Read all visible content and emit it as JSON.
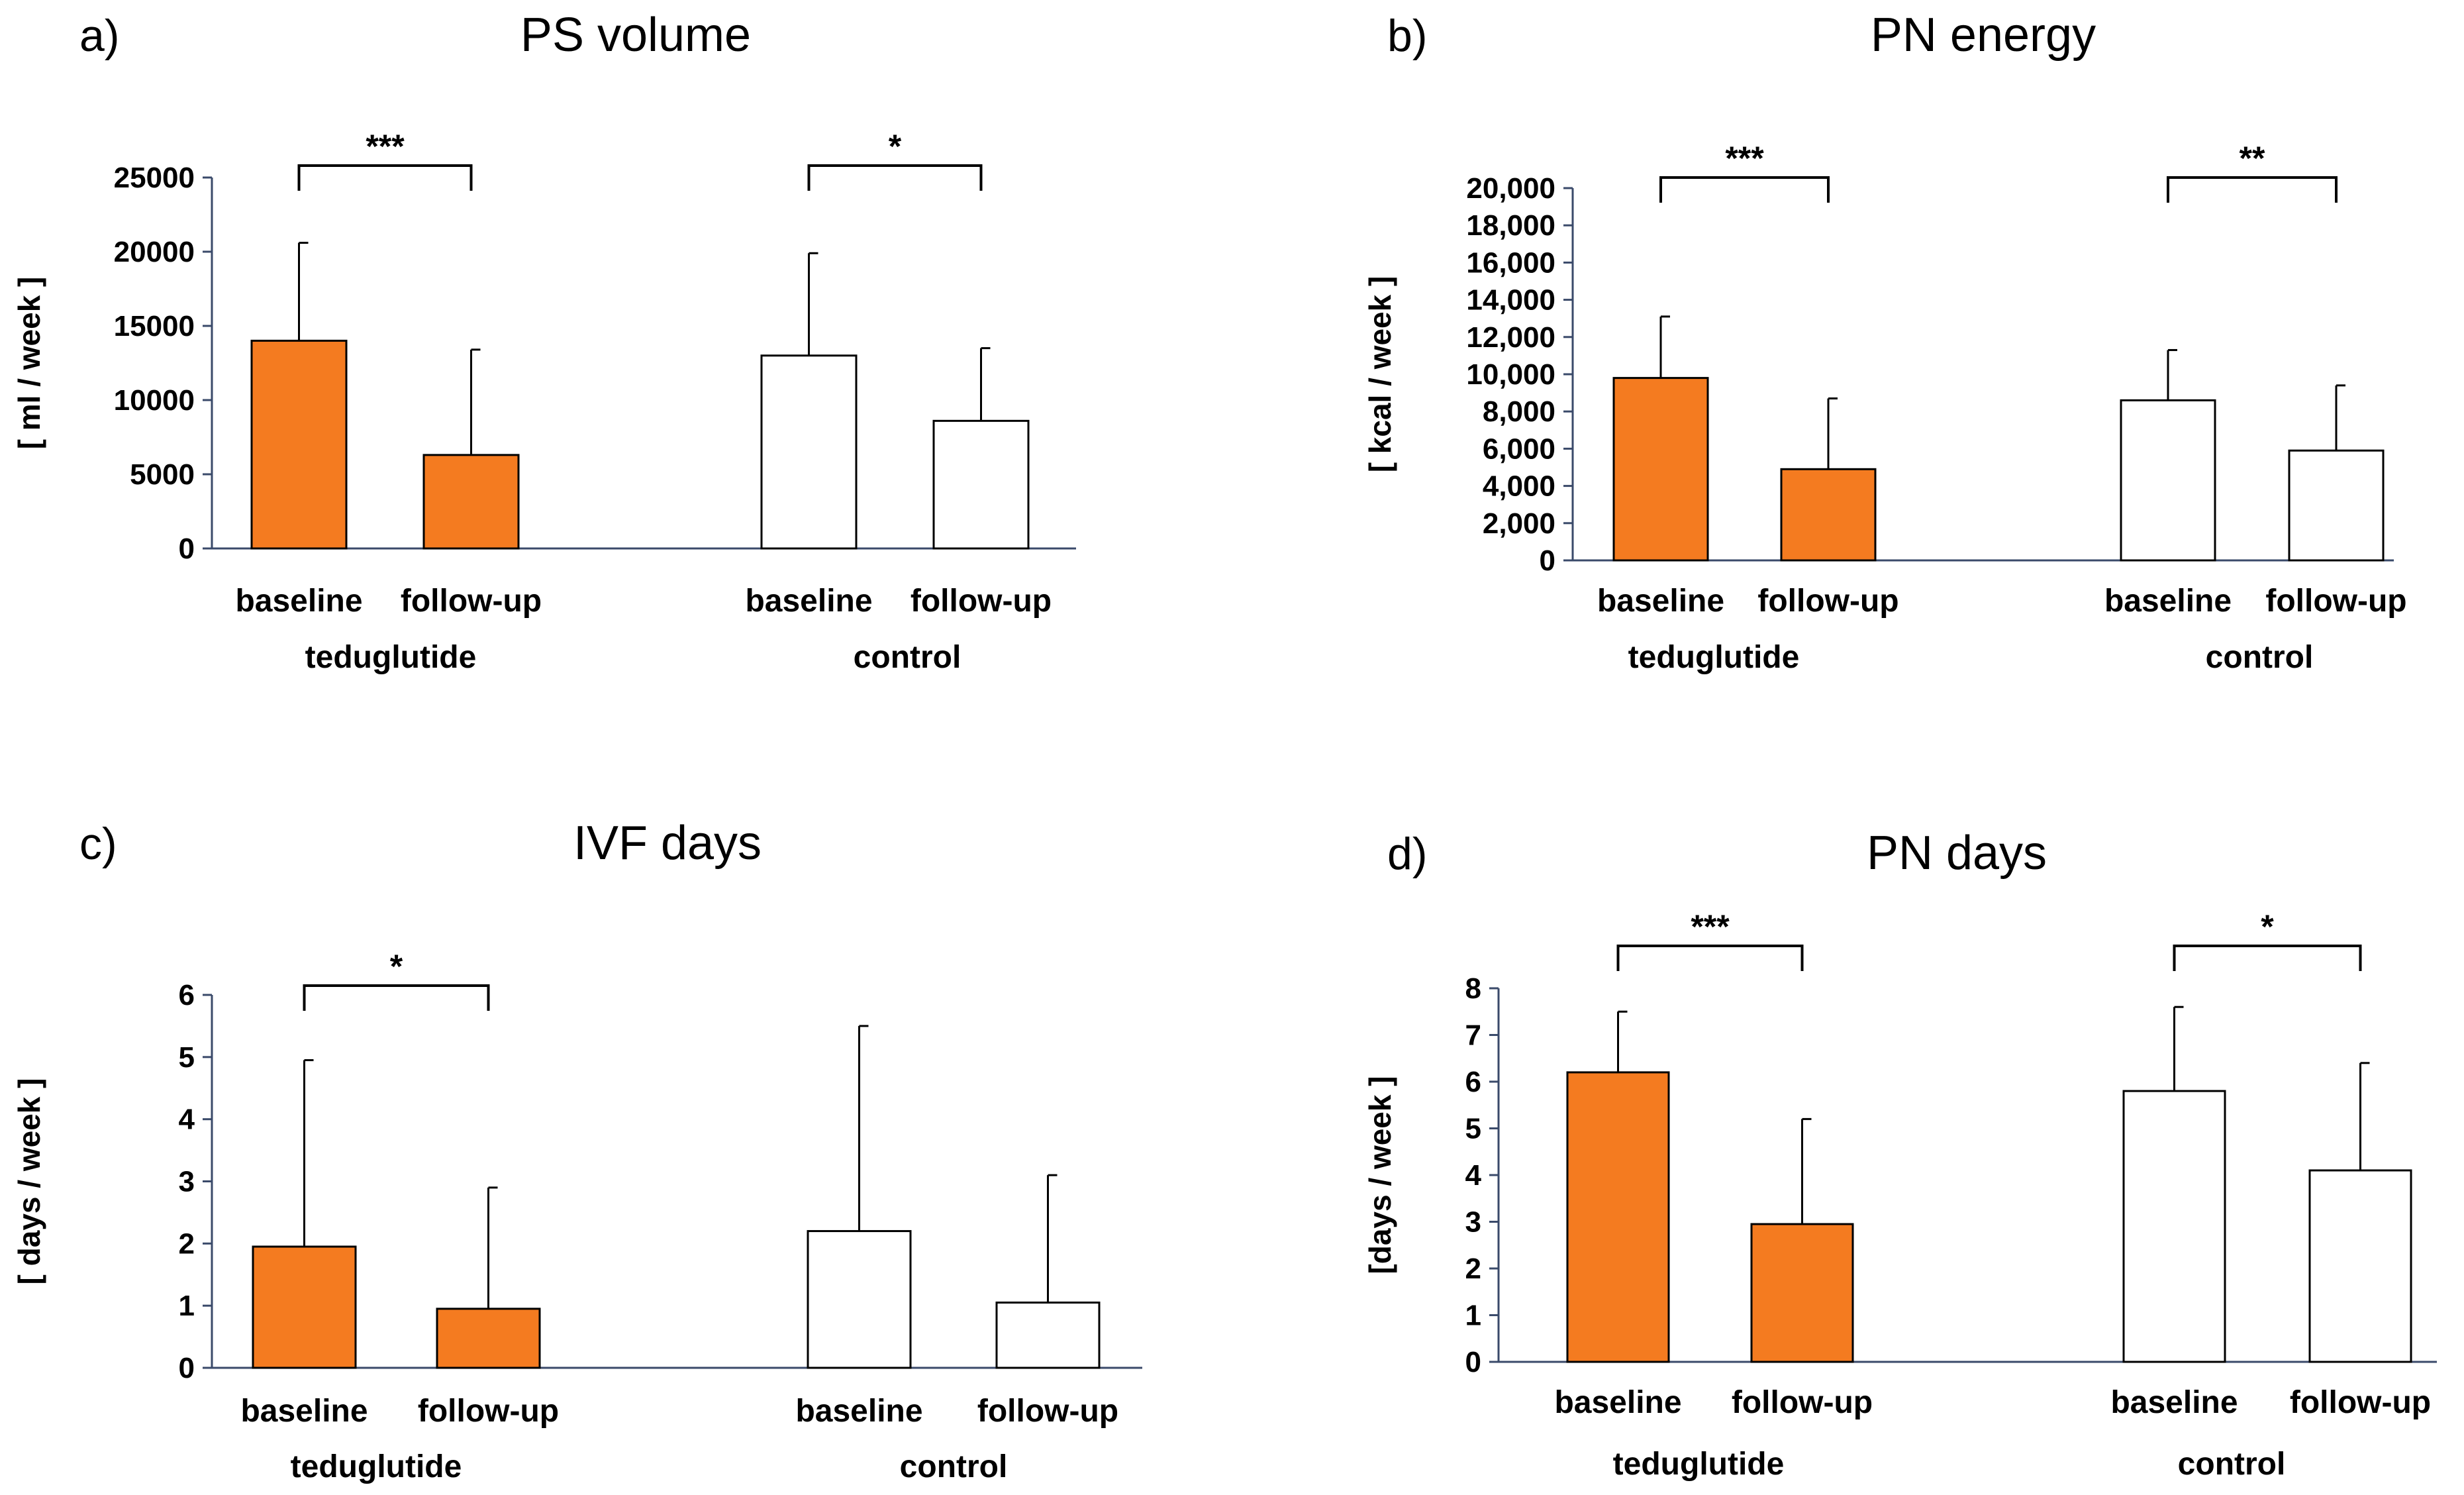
{
  "chart_data": [
    {
      "type": "bar",
      "panel_label": "a)",
      "title": "PS volume",
      "ylabel": "[ ml / week ]",
      "ylim": [
        0,
        25000
      ],
      "yticks": [
        "0",
        "5000",
        "10000",
        "15000",
        "20000",
        "25000"
      ],
      "categories": [
        "baseline",
        "follow-up",
        "baseline",
        "follow-up"
      ],
      "groups": [
        {
          "name": "teduglutide",
          "color": "#f47b20",
          "values": [
            14000,
            6300
          ],
          "error": [
            6600,
            7100
          ],
          "significance": "***"
        },
        {
          "name": "control",
          "color": "#ffffff",
          "values": [
            13000,
            8600
          ],
          "error": [
            6900,
            4900
          ],
          "significance": "*"
        }
      ]
    },
    {
      "type": "bar",
      "panel_label": "b)",
      "title": "PN energy",
      "ylabel": "[ kcal / week ]",
      "ylim": [
        0,
        20000
      ],
      "yticks": [
        "0",
        "2,000",
        "4,000",
        "6,000",
        "8,000",
        "10,000",
        "12,000",
        "14,000",
        "16,000",
        "18,000",
        "20,000"
      ],
      "categories": [
        "baseline",
        "follow-up",
        "baseline",
        "follow-up"
      ],
      "groups": [
        {
          "name": "teduglutide",
          "color": "#f47b20",
          "values": [
            9800,
            4900
          ],
          "error": [
            3300,
            3800
          ],
          "significance": "***"
        },
        {
          "name": "control",
          "color": "#ffffff",
          "values": [
            8600,
            5900
          ],
          "error": [
            2700,
            3500
          ],
          "significance": "**"
        }
      ]
    },
    {
      "type": "bar",
      "panel_label": "c)",
      "title": "IVF days",
      "ylabel": "[ days / week ]",
      "ylim": [
        0,
        6
      ],
      "yticks": [
        "0",
        "1",
        "2",
        "3",
        "4",
        "5",
        "6"
      ],
      "categories": [
        "baseline",
        "follow-up",
        "baseline",
        "follow-up"
      ],
      "groups": [
        {
          "name": "teduglutide",
          "color": "#f47b20",
          "values": [
            1.95,
            0.95
          ],
          "error": [
            3.0,
            1.95
          ],
          "significance": "*"
        },
        {
          "name": "control",
          "color": "#ffffff",
          "values": [
            2.2,
            1.05
          ],
          "error": [
            3.3,
            2.05
          ],
          "significance": ""
        }
      ]
    },
    {
      "type": "bar",
      "panel_label": "d)",
      "title": "PN days",
      "ylabel": "[days / week ]",
      "ylim": [
        0,
        8
      ],
      "yticks": [
        "0",
        "1",
        "2",
        "3",
        "4",
        "5",
        "6",
        "7",
        "8"
      ],
      "categories": [
        "baseline",
        "follow-up",
        "baseline",
        "follow-up"
      ],
      "groups": [
        {
          "name": "teduglutide",
          "color": "#f47b20",
          "values": [
            6.2,
            2.95
          ],
          "error": [
            1.3,
            2.25
          ],
          "significance": "***"
        },
        {
          "name": "control",
          "color": "#ffffff",
          "values": [
            5.8,
            4.1
          ],
          "error": [
            1.8,
            2.3
          ],
          "significance": "*"
        }
      ]
    }
  ]
}
